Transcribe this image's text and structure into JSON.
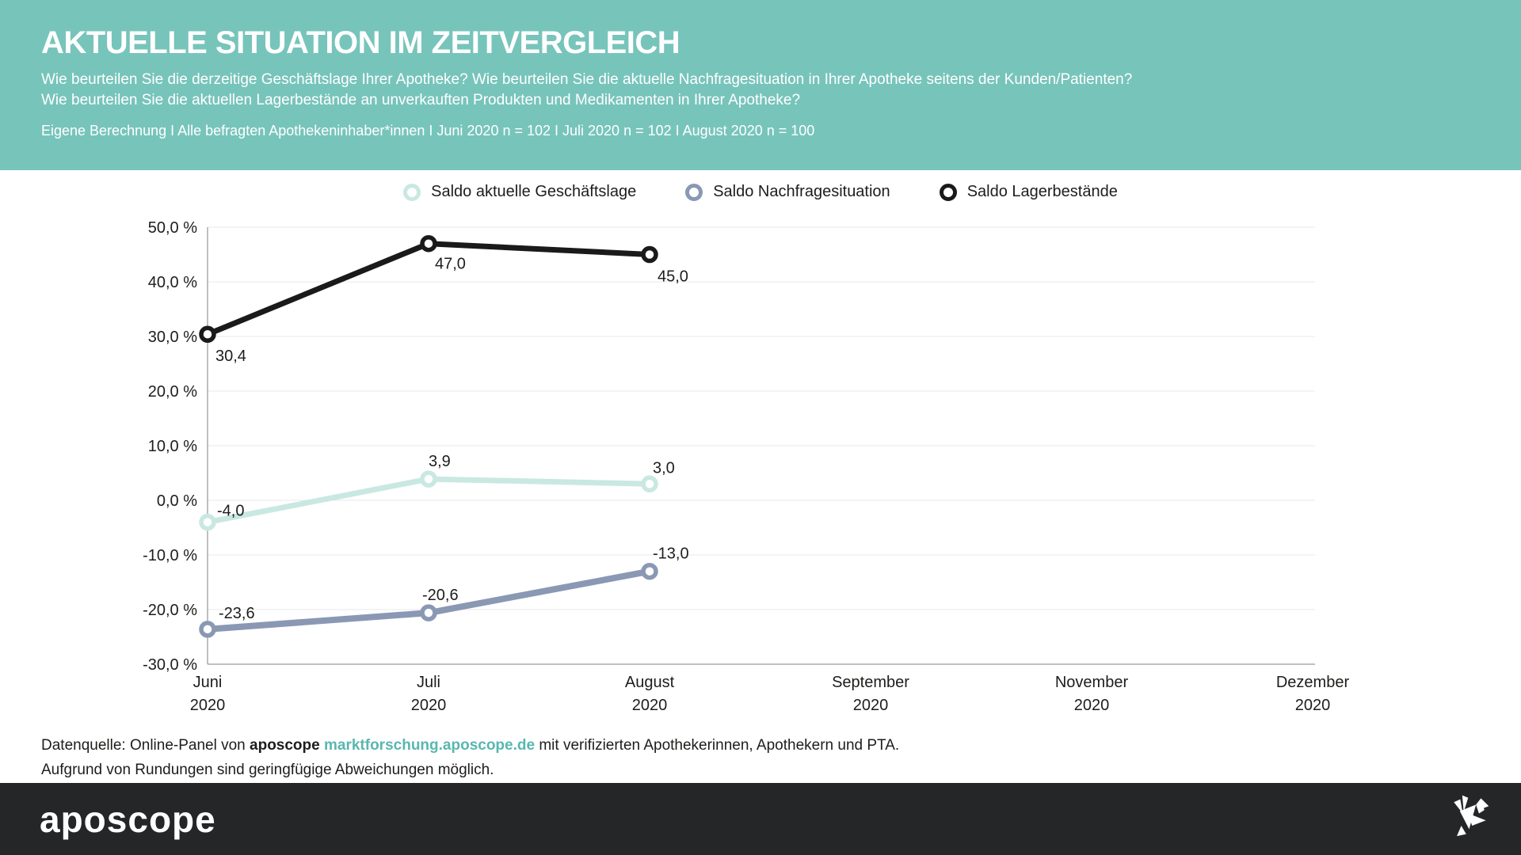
{
  "header": {
    "title": "AKTUELLE SITUATION IM ZEITVERGLEICH",
    "subtitle_line1": "Wie beurteilen Sie die derzeitige Geschäftslage Ihrer Apotheke? Wie beurteilen Sie die aktuelle Nachfragesituation in Ihrer Apotheke seitens der Kunden/Patienten?",
    "subtitle_line2": "Wie beurteilen Sie die aktuellen Lagerbestände an unverkauften Produkten und Medikamenten in Ihrer Apotheke?",
    "methodology": "Eigene Berechnung I Alle befragten Apothekeninhaber*innen I Juni 2020 n = 102 I Juli 2020 n = 102 I August 2020 n = 100"
  },
  "chart_data": {
    "type": "line",
    "title": "Aktuelle Situation im Zeitvergleich",
    "categories": [
      {
        "month": "Juni",
        "year": "2020"
      },
      {
        "month": "Juli",
        "year": "2020"
      },
      {
        "month": "August",
        "year": "2020"
      },
      {
        "month": "September",
        "year": "2020"
      },
      {
        "month": "November",
        "year": "2020"
      },
      {
        "month": "Dezember",
        "year": "2020"
      }
    ],
    "series": [
      {
        "name": "Saldo aktuelle Geschäftslage",
        "color": "#c9e8e1",
        "values": [
          -4.0,
          3.9,
          3.0
        ]
      },
      {
        "name": "Saldo Nachfragesituation",
        "color": "#8a98b4",
        "values": [
          -23.6,
          -20.6,
          -13.0
        ]
      },
      {
        "name": "Saldo Lagerbestände",
        "color": "#1a1a1a",
        "values": [
          30.4,
          47.0,
          45.0
        ]
      }
    ],
    "ylabel": "",
    "xlabel": "",
    "ylim": [
      -30,
      50
    ],
    "ytick_step": 10,
    "ytick_suffix": " %",
    "grid": true,
    "legend_position": "top-center"
  },
  "footer": {
    "source_prefix": "Datenquelle: Online-Panel von",
    "source_brand": "aposcope",
    "source_link": "marktforschung.aposcope.de",
    "source_suffix": "mit verifizierten Apothekerinnen, Apothekern und PTA.",
    "rounding_note": "Aufgrund von Rundungen sind geringfügige Abweichungen möglich."
  },
  "brandbar": {
    "logo_text": "aposcope",
    "bird_icon": "origami-bird"
  }
}
